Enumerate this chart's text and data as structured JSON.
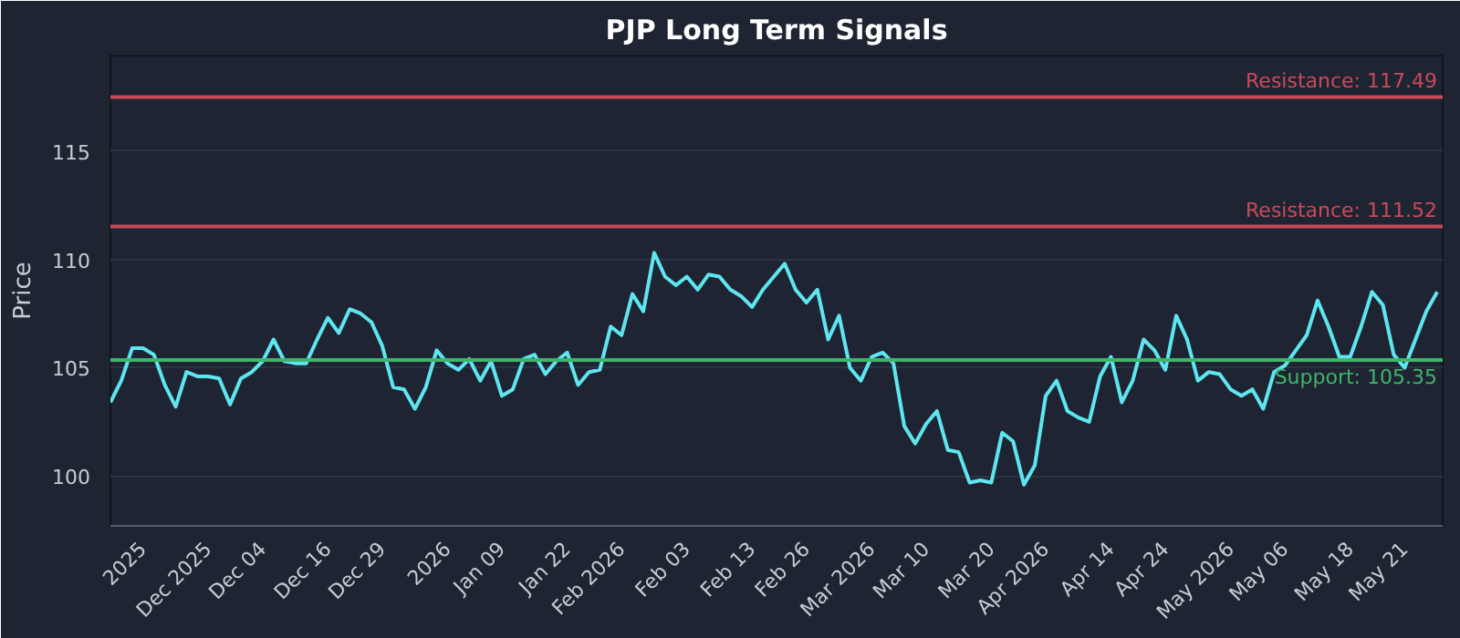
{
  "chart_data": {
    "type": "line",
    "title": "PJP Long Term Signals",
    "ylabel": "Price",
    "categories": [
      null,
      null,
      null,
      "2025",
      null,
      null,
      null,
      null,
      null,
      "Dec 2025",
      null,
      null,
      null,
      null,
      "Dec 04",
      null,
      null,
      null,
      null,
      null,
      "Dec 16",
      null,
      null,
      null,
      null,
      "Dec 29",
      null,
      null,
      null,
      null,
      null,
      "2026",
      null,
      null,
      null,
      null,
      "Jan 09",
      null,
      null,
      null,
      null,
      null,
      "Jan 22",
      null,
      null,
      null,
      null,
      "Feb 2026",
      null,
      null,
      null,
      null,
      null,
      "Feb 03",
      null,
      null,
      null,
      null,
      null,
      "Feb 13",
      null,
      null,
      null,
      null,
      "Feb 26",
      null,
      null,
      null,
      null,
      null,
      "Mar 2026",
      null,
      null,
      null,
      null,
      "Mar 10",
      null,
      null,
      null,
      null,
      null,
      "Mar 20",
      null,
      null,
      null,
      null,
      "Apr 2026",
      null,
      null,
      null,
      null,
      null,
      "Apr 14",
      null,
      null,
      null,
      null,
      "Apr 24",
      null,
      null,
      null,
      null,
      null,
      "May 2026",
      null,
      null,
      null,
      null,
      "May 06",
      null,
      null,
      null,
      null,
      null,
      "May 18",
      null,
      null,
      null,
      null,
      "May 21",
      null,
      null,
      null
    ],
    "series": [
      {
        "color": "#5ee6f0",
        "values": [
          103.4,
          104.4,
          105.9,
          105.9,
          105.6,
          104.2,
          103.2,
          104.8,
          104.6,
          104.6,
          104.5,
          103.3,
          104.5,
          104.8,
          105.3,
          106.3,
          105.3,
          105.2,
          105.2,
          106.3,
          107.3,
          106.6,
          107.7,
          107.5,
          107.1,
          106.0,
          104.1,
          104.0,
          103.1,
          104.1,
          105.8,
          105.2,
          104.9,
          105.4,
          104.4,
          105.3,
          103.7,
          104.0,
          105.4,
          105.6,
          104.7,
          105.3,
          105.7,
          104.2,
          104.8,
          104.9,
          106.9,
          106.5,
          108.4,
          107.6,
          110.3,
          109.2,
          108.8,
          109.2,
          108.6,
          109.3,
          109.2,
          108.6,
          108.3,
          107.8,
          108.6,
          109.2,
          109.8,
          108.6,
          108.0,
          108.6,
          106.3,
          107.4,
          105.0,
          104.4,
          105.5,
          105.7,
          105.2,
          102.3,
          101.5,
          102.4,
          103.0,
          101.2,
          101.1,
          99.7,
          99.8,
          99.7,
          102.0,
          101.6,
          99.6,
          100.5,
          103.7,
          104.4,
          103.0,
          102.7,
          102.5,
          104.6,
          105.5,
          103.4,
          104.4,
          106.3,
          105.8,
          104.9,
          107.4,
          106.3,
          104.4,
          104.8,
          104.7,
          104.0,
          103.7,
          104.0,
          103.1,
          104.8,
          105.1,
          105.8,
          106.5,
          108.1,
          106.9,
          105.5,
          105.5,
          106.9,
          108.5,
          107.9,
          105.6,
          105.0,
          106.3,
          107.6,
          108.5
        ]
      }
    ],
    "ylim": [
      97.7,
      119.4
    ],
    "yticks": [
      100,
      105,
      110,
      115
    ],
    "grid": "y",
    "ref_lines": [
      {
        "axis": "y",
        "value": 117.49,
        "label": "Resistance: 117.49",
        "color": "#c94a5a"
      },
      {
        "axis": "y",
        "value": 111.52,
        "label": "Resistance: 111.52",
        "color": "#c94a5a"
      },
      {
        "axis": "y",
        "value": 105.35,
        "label": "Support: 105.35",
        "color": "#3fb56a"
      }
    ]
  }
}
